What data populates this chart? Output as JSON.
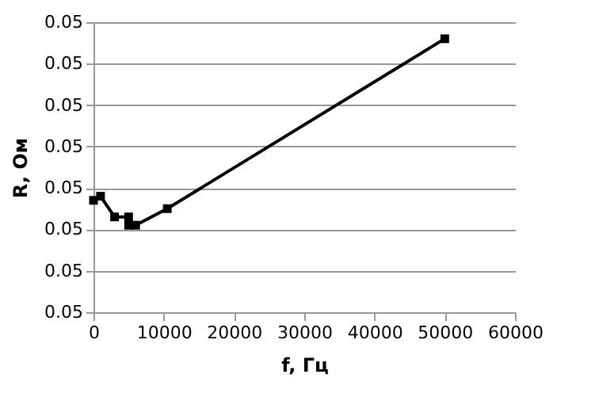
{
  "chart_data": {
    "type": "line",
    "xlabel": "f, Гц",
    "ylabel": "R, Ом",
    "x": [
      0,
      1000,
      3000,
      5000,
      5000,
      6000,
      10500,
      50000
    ],
    "series": [
      {
        "color": "#000000",
        "values": [
          0.04977,
          0.04978,
          0.04973,
          0.04973,
          0.04971,
          0.04971,
          0.04975,
          0.05016
        ]
      }
    ],
    "xlim": [
      0,
      60000
    ],
    "xticks": [
      0,
      10000,
      20000,
      30000,
      40000,
      50000,
      60000
    ],
    "ylim": [
      0.0495,
      0.0502
    ],
    "yticks": [
      {
        "value": 0.0495,
        "label": "0.05"
      },
      {
        "value": 0.0496,
        "label": "0.05"
      },
      {
        "value": 0.0497,
        "label": "0.05"
      },
      {
        "value": 0.0498,
        "label": "0.05"
      },
      {
        "value": 0.0499,
        "label": "0.05"
      },
      {
        "value": 0.05,
        "label": "0.05"
      },
      {
        "value": 0.0501,
        "label": "0.05"
      },
      {
        "value": 0.0502,
        "label": "0.05"
      }
    ],
    "grid": "y",
    "marker": "square",
    "line_style": "solid"
  }
}
